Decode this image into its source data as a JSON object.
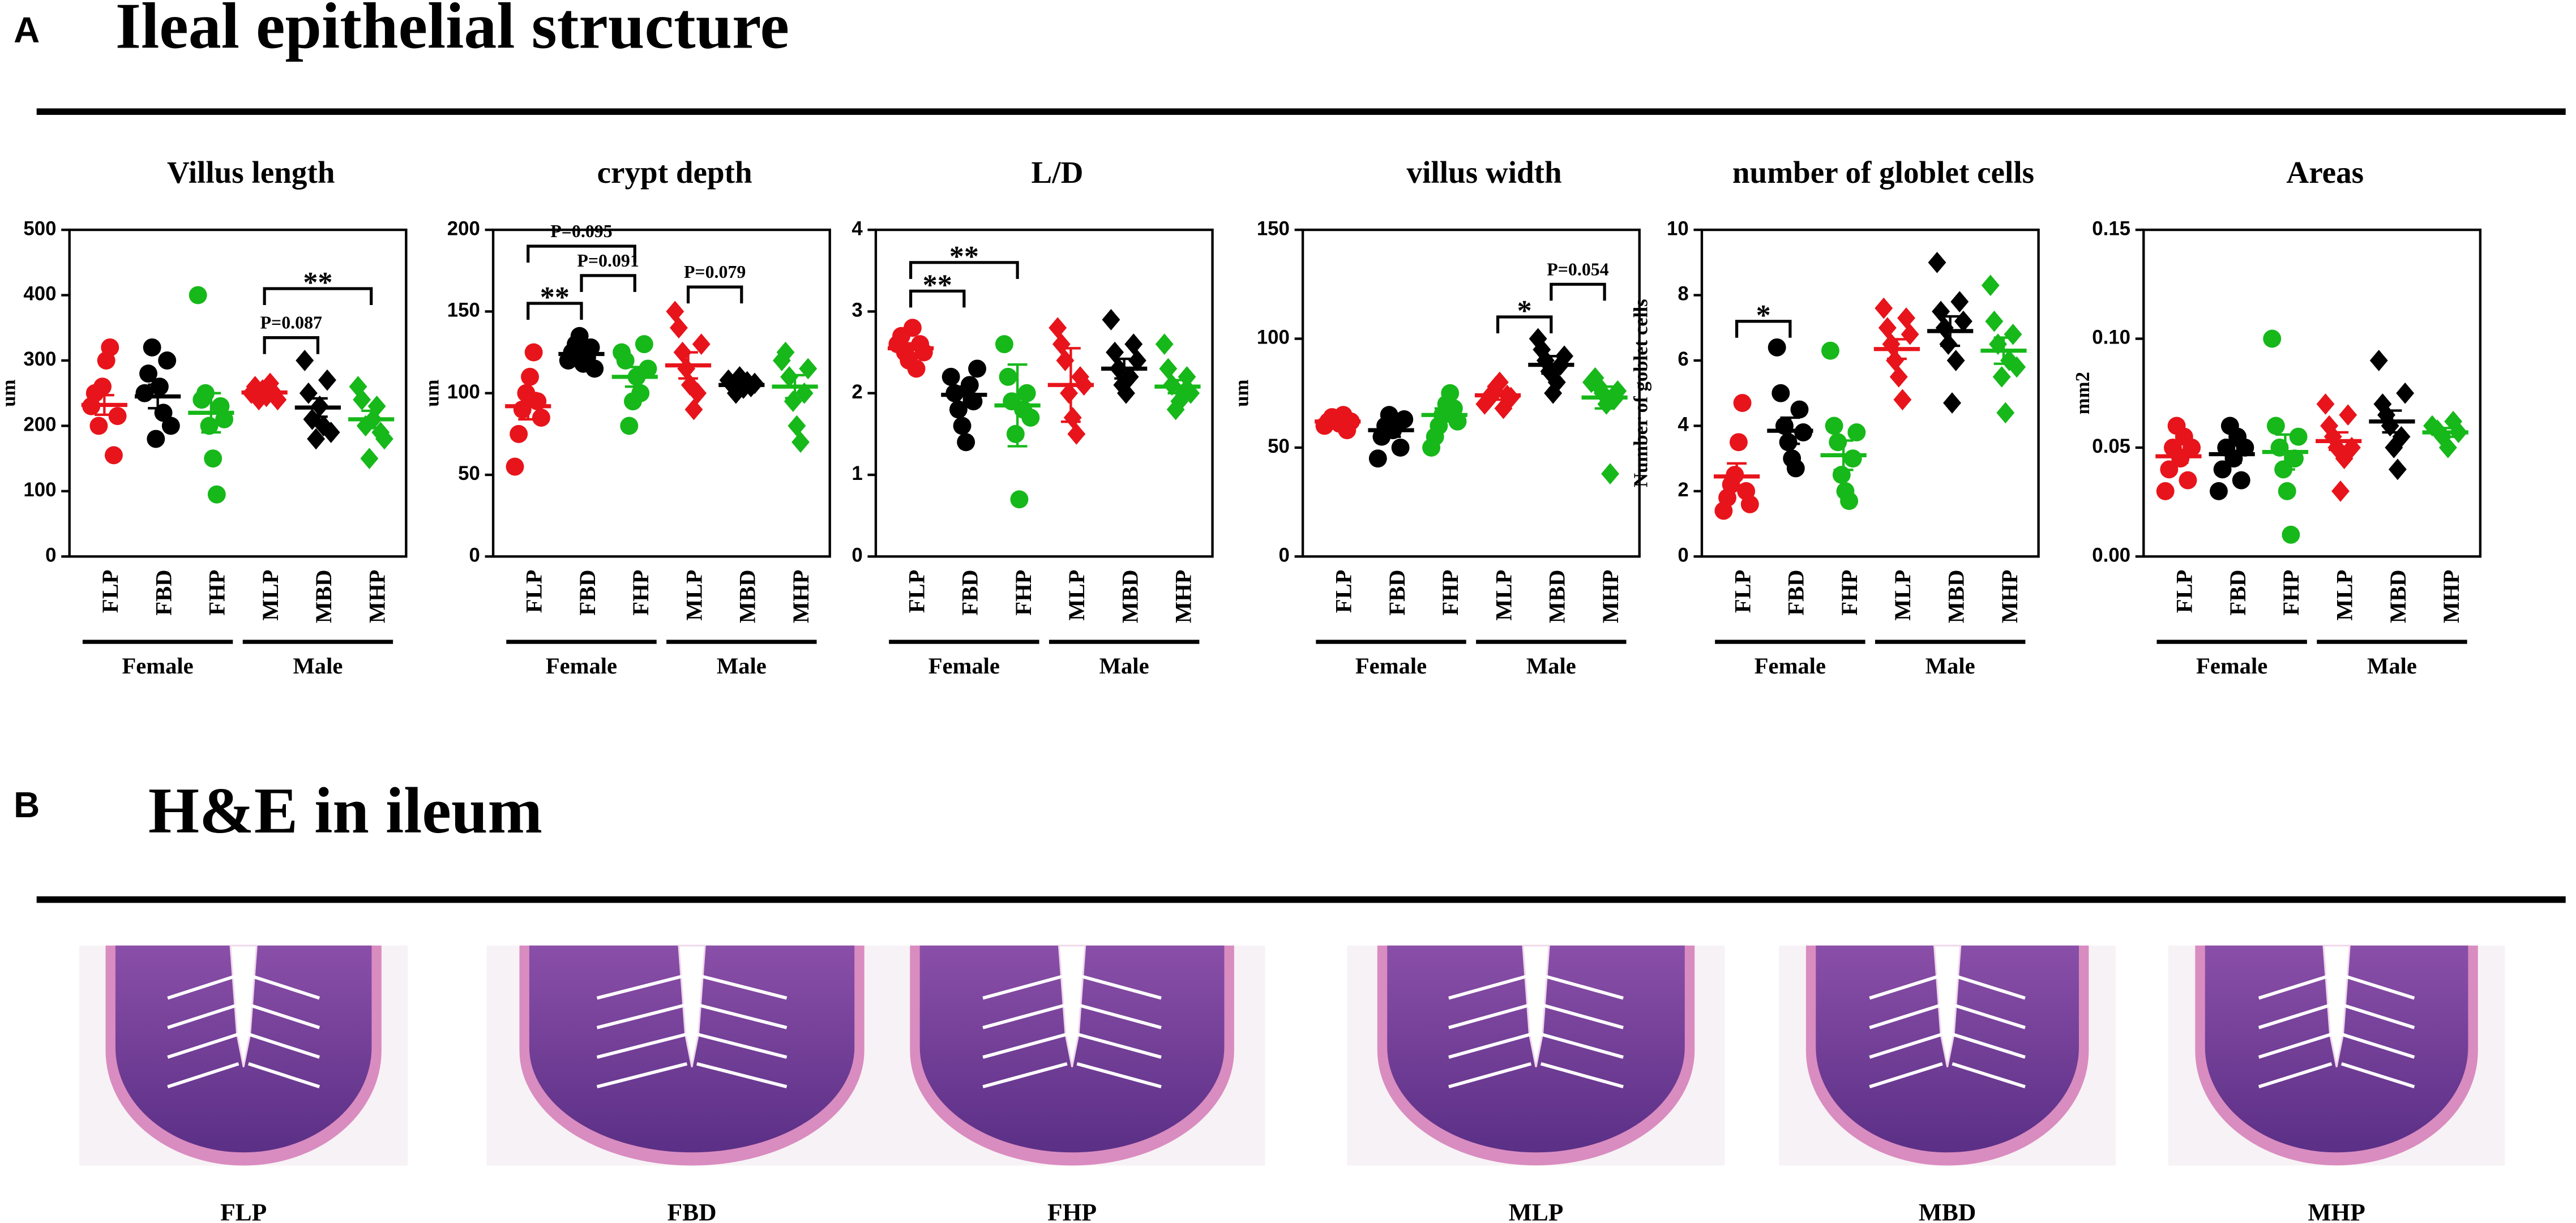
{
  "panel_a": {
    "label": "A",
    "title": "Ileal epithelial structure"
  },
  "chart_data": [
    {
      "type": "dot",
      "title": "Villus length",
      "ylabel": "um",
      "ylim": [
        0,
        500
      ],
      "yticks": [
        0,
        100,
        200,
        300,
        400,
        500
      ],
      "groups": [
        "Female",
        "Male"
      ],
      "series": [
        {
          "name": "FLP",
          "color": "#e8141b",
          "marker": "circle",
          "values": [
            230,
            250,
            200,
            260,
            300,
            320,
            155,
            215
          ],
          "mean": 232,
          "error": 15
        },
        {
          "name": "FBD",
          "color": "#000000",
          "marker": "circle",
          "values": [
            250,
            280,
            320,
            180,
            260,
            220,
            300,
            200
          ],
          "mean": 245,
          "error": 18
        },
        {
          "name": "FHP",
          "color": "#17b81a",
          "marker": "circle",
          "values": [
            400,
            240,
            250,
            200,
            150,
            95,
            230,
            210
          ],
          "mean": 220,
          "error": 30
        },
        {
          "name": "MLP",
          "color": "#e8141b",
          "marker": "diamond",
          "values": [
            250,
            260,
            240,
            255,
            245,
            265,
            250,
            240
          ],
          "mean": 251,
          "error": 5
        },
        {
          "name": "MBD",
          "color": "#000000",
          "marker": "diamond",
          "values": [
            300,
            250,
            210,
            180,
            230,
            200,
            270,
            190
          ],
          "mean": 228,
          "error": 14
        },
        {
          "name": "MHP",
          "color": "#17b81a",
          "marker": "diamond",
          "values": [
            260,
            240,
            200,
            150,
            210,
            230,
            190,
            180
          ],
          "mean": 210,
          "error": 13
        }
      ],
      "annotations": [
        {
          "label": "P=0.087",
          "from": 3,
          "to": 4,
          "y": 335
        },
        {
          "label": "**",
          "from": 3,
          "to": 5,
          "y": 410
        }
      ]
    },
    {
      "type": "dot",
      "title": "crypt depth",
      "ylabel": "um",
      "ylim": [
        0,
        200
      ],
      "yticks": [
        0,
        50,
        100,
        150,
        200
      ],
      "groups": [
        "Female",
        "Male"
      ],
      "series": [
        {
          "name": "FLP",
          "color": "#e8141b",
          "marker": "circle",
          "values": [
            55,
            75,
            90,
            100,
            110,
            125,
            95,
            85
          ],
          "mean": 92,
          "error": 8
        },
        {
          "name": "FBD",
          "color": "#000000",
          "marker": "circle",
          "values": [
            120,
            125,
            130,
            135,
            118,
            122,
            128,
            115
          ],
          "mean": 124,
          "error": 3
        },
        {
          "name": "FHP",
          "color": "#17b81a",
          "marker": "circle",
          "values": [
            125,
            120,
            80,
            95,
            110,
            100,
            130,
            115
          ],
          "mean": 110,
          "error": 6
        },
        {
          "name": "MLP",
          "color": "#e8141b",
          "marker": "diamond",
          "values": [
            150,
            140,
            125,
            115,
            105,
            90,
            100,
            130
          ],
          "mean": 117,
          "error": 8
        },
        {
          "name": "MBD",
          "color": "#000000",
          "marker": "diamond",
          "values": [
            108,
            105,
            100,
            110,
            103,
            107,
            104,
            106
          ],
          "mean": 105,
          "error": 2
        },
        {
          "name": "MHP",
          "color": "#17b81a",
          "marker": "diamond",
          "values": [
            120,
            125,
            110,
            95,
            80,
            70,
            100,
            115
          ],
          "mean": 104,
          "error": 7
        }
      ],
      "annotations": [
        {
          "label": "**",
          "from": 0,
          "to": 1,
          "y": 155
        },
        {
          "label": "P=0.091",
          "from": 1,
          "to": 2,
          "y": 172
        },
        {
          "label": "P=0.095",
          "from": 0,
          "to": 2,
          "y": 190
        },
        {
          "label": "P=0.079",
          "from": 3,
          "to": 4,
          "y": 165
        }
      ]
    },
    {
      "type": "dot",
      "title": "L/D",
      "ylim": [
        0,
        4
      ],
      "yticks": [
        0,
        1,
        2,
        3,
        4
      ],
      "groups": [
        "Female",
        "Male"
      ],
      "series": [
        {
          "name": "FLP",
          "color": "#e8141b",
          "marker": "circle",
          "values": [
            2.6,
            2.7,
            2.5,
            2.4,
            2.8,
            2.3,
            2.6,
            2.5
          ],
          "mean": 2.55,
          "error": 0.06
        },
        {
          "name": "FBD",
          "color": "#000000",
          "marker": "circle",
          "values": [
            2.2,
            2.0,
            1.8,
            1.6,
            1.4,
            2.1,
            1.9,
            2.3
          ],
          "mean": 1.98,
          "error": 0.1
        },
        {
          "name": "FHP",
          "color": "#17b81a",
          "marker": "circle",
          "values": [
            2.6,
            2.2,
            1.9,
            1.5,
            0.7,
            1.8,
            2.0,
            1.7
          ],
          "mean": 1.85,
          "error": 0.5
        },
        {
          "name": "MLP",
          "color": "#e8141b",
          "marker": "diamond",
          "values": [
            2.8,
            2.6,
            2.4,
            2.0,
            1.7,
            1.5,
            2.2,
            2.1
          ],
          "mean": 2.1,
          "error": 0.45
        },
        {
          "name": "MBD",
          "color": "#000000",
          "marker": "diamond",
          "values": [
            2.9,
            2.5,
            2.3,
            2.1,
            2.0,
            2.2,
            2.6,
            2.4
          ],
          "mean": 2.3,
          "error": 0.12
        },
        {
          "name": "MHP",
          "color": "#17b81a",
          "marker": "diamond",
          "values": [
            2.6,
            2.3,
            2.1,
            1.8,
            1.9,
            2.0,
            2.2,
            2.0
          ],
          "mean": 2.08,
          "error": 0.08
        }
      ],
      "annotations": [
        {
          "label": "**",
          "from": 0,
          "to": 1,
          "y": 3.25
        },
        {
          "label": "**",
          "from": 0,
          "to": 2,
          "y": 3.6
        }
      ]
    },
    {
      "type": "dot",
      "title": "villus width",
      "ylabel": "um",
      "ylim": [
        0,
        150
      ],
      "yticks": [
        0,
        50,
        100,
        150
      ],
      "groups": [
        "Female",
        "Male"
      ],
      "series": [
        {
          "name": "FLP",
          "color": "#e8141b",
          "marker": "circle",
          "values": [
            60,
            62,
            64,
            63,
            61,
            65,
            58,
            62
          ],
          "mean": 62,
          "error": 1
        },
        {
          "name": "FBD",
          "color": "#000000",
          "marker": "circle",
          "values": [
            45,
            55,
            60,
            65,
            58,
            62,
            50,
            63
          ],
          "mean": 58,
          "error": 3
        },
        {
          "name": "FHP",
          "color": "#17b81a",
          "marker": "circle",
          "values": [
            50,
            55,
            60,
            65,
            70,
            75,
            68,
            62
          ],
          "mean": 65,
          "error": 3
        },
        {
          "name": "MLP",
          "color": "#e8141b",
          "marker": "diamond",
          "values": [
            70,
            72,
            75,
            78,
            80,
            68,
            74,
            73
          ],
          "mean": 74,
          "error": 2
        },
        {
          "name": "MBD",
          "color": "#000000",
          "marker": "diamond",
          "values": [
            100,
            95,
            90,
            85,
            75,
            80,
            88,
            92
          ],
          "mean": 88,
          "error": 4
        },
        {
          "name": "MHP",
          "color": "#17b81a",
          "marker": "diamond",
          "values": [
            80,
            82,
            78,
            75,
            70,
            38,
            72,
            76
          ],
          "mean": 73,
          "error": 5
        }
      ],
      "annotations": [
        {
          "label": "*",
          "from": 3,
          "to": 4,
          "y": 110
        },
        {
          "label": "P=0.054",
          "from": 4,
          "to": 5,
          "y": 125
        }
      ]
    },
    {
      "type": "dot",
      "title": "number of globlet cells",
      "ylabel": "Number of goblet cells",
      "ylim": [
        0,
        10
      ],
      "yticks": [
        0,
        2,
        4,
        6,
        8,
        10
      ],
      "groups": [
        "Female",
        "Male"
      ],
      "series": [
        {
          "name": "FLP",
          "color": "#e8141b",
          "marker": "circle",
          "values": [
            1.4,
            1.8,
            2.2,
            2.5,
            3.5,
            4.7,
            2.0,
            1.6
          ],
          "mean": 2.45,
          "error": 0.4
        },
        {
          "name": "FBD",
          "color": "#000000",
          "marker": "circle",
          "values": [
            6.4,
            5,
            4,
            3.5,
            3,
            2.7,
            4.5,
            3.8
          ],
          "mean": 3.85,
          "error": 0.4
        },
        {
          "name": "FHP",
          "color": "#17b81a",
          "marker": "circle",
          "values": [
            6.3,
            4,
            3.5,
            2.5,
            2,
            1.7,
            3,
            3.8
          ],
          "mean": 3.1,
          "error": 0.45
        },
        {
          "name": "MLP",
          "color": "#e8141b",
          "marker": "diamond",
          "values": [
            7.6,
            7,
            6.5,
            6,
            5.5,
            4.8,
            7.3,
            6.8
          ],
          "mean": 6.35,
          "error": 0.3
        },
        {
          "name": "MBD",
          "color": "#000000",
          "marker": "diamond",
          "values": [
            9,
            7.5,
            7,
            6.5,
            4.7,
            6,
            7.8,
            7.2
          ],
          "mean": 6.9,
          "error": 0.45
        },
        {
          "name": "MHP",
          "color": "#17b81a",
          "marker": "diamond",
          "values": [
            8.3,
            7.2,
            6.5,
            5.5,
            4.4,
            6,
            6.8,
            5.8
          ],
          "mean": 6.3,
          "error": 0.4
        }
      ],
      "annotations": [
        {
          "label": "*",
          "from": 0,
          "to": 1,
          "y": 7.2
        }
      ]
    },
    {
      "type": "dot",
      "title": "Areas",
      "ylabel": "mm2",
      "ylim": [
        0,
        0.15
      ],
      "yticks": [
        {
          "value": 0,
          "label": "0.00"
        },
        0.05,
        {
          "value": 0.1,
          "label": "0.10"
        },
        0.15
      ],
      "groups": [
        "Female",
        "Male"
      ],
      "series": [
        {
          "name": "FLP",
          "color": "#e8141b",
          "marker": "circle",
          "values": [
            0.03,
            0.04,
            0.05,
            0.06,
            0.045,
            0.055,
            0.035,
            0.05
          ],
          "mean": 0.046,
          "error": 0.003
        },
        {
          "name": "FBD",
          "color": "#000000",
          "marker": "circle",
          "values": [
            0.03,
            0.04,
            0.05,
            0.06,
            0.045,
            0.055,
            0.035,
            0.05
          ],
          "mean": 0.047,
          "error": 0.004
        },
        {
          "name": "FHP",
          "color": "#17b81a",
          "marker": "circle",
          "values": [
            0.1,
            0.06,
            0.05,
            0.04,
            0.03,
            0.01,
            0.045,
            0.055
          ],
          "mean": 0.048,
          "error": 0.008
        },
        {
          "name": "MLP",
          "color": "#e8141b",
          "marker": "diamond",
          "values": [
            0.07,
            0.06,
            0.055,
            0.05,
            0.03,
            0.045,
            0.065,
            0.05
          ],
          "mean": 0.053,
          "error": 0.004
        },
        {
          "name": "MBD",
          "color": "#000000",
          "marker": "diamond",
          "values": [
            0.09,
            0.07,
            0.065,
            0.06,
            0.05,
            0.04,
            0.055,
            0.075
          ],
          "mean": 0.062,
          "error": 0.005
        },
        {
          "name": "MHP",
          "color": "#17b81a",
          "marker": "diamond",
          "values": [
            0.06,
            0.058,
            0.055,
            0.05,
            0.062,
            0.057
          ],
          "mean": 0.057,
          "error": 0.002
        }
      ],
      "annotations": []
    }
  ],
  "panel_b": {
    "label": "B",
    "title": "H&E in ileum",
    "images": [
      "FLP",
      "FBD",
      "FHP",
      "MLP",
      "MBD",
      "MHP"
    ]
  }
}
